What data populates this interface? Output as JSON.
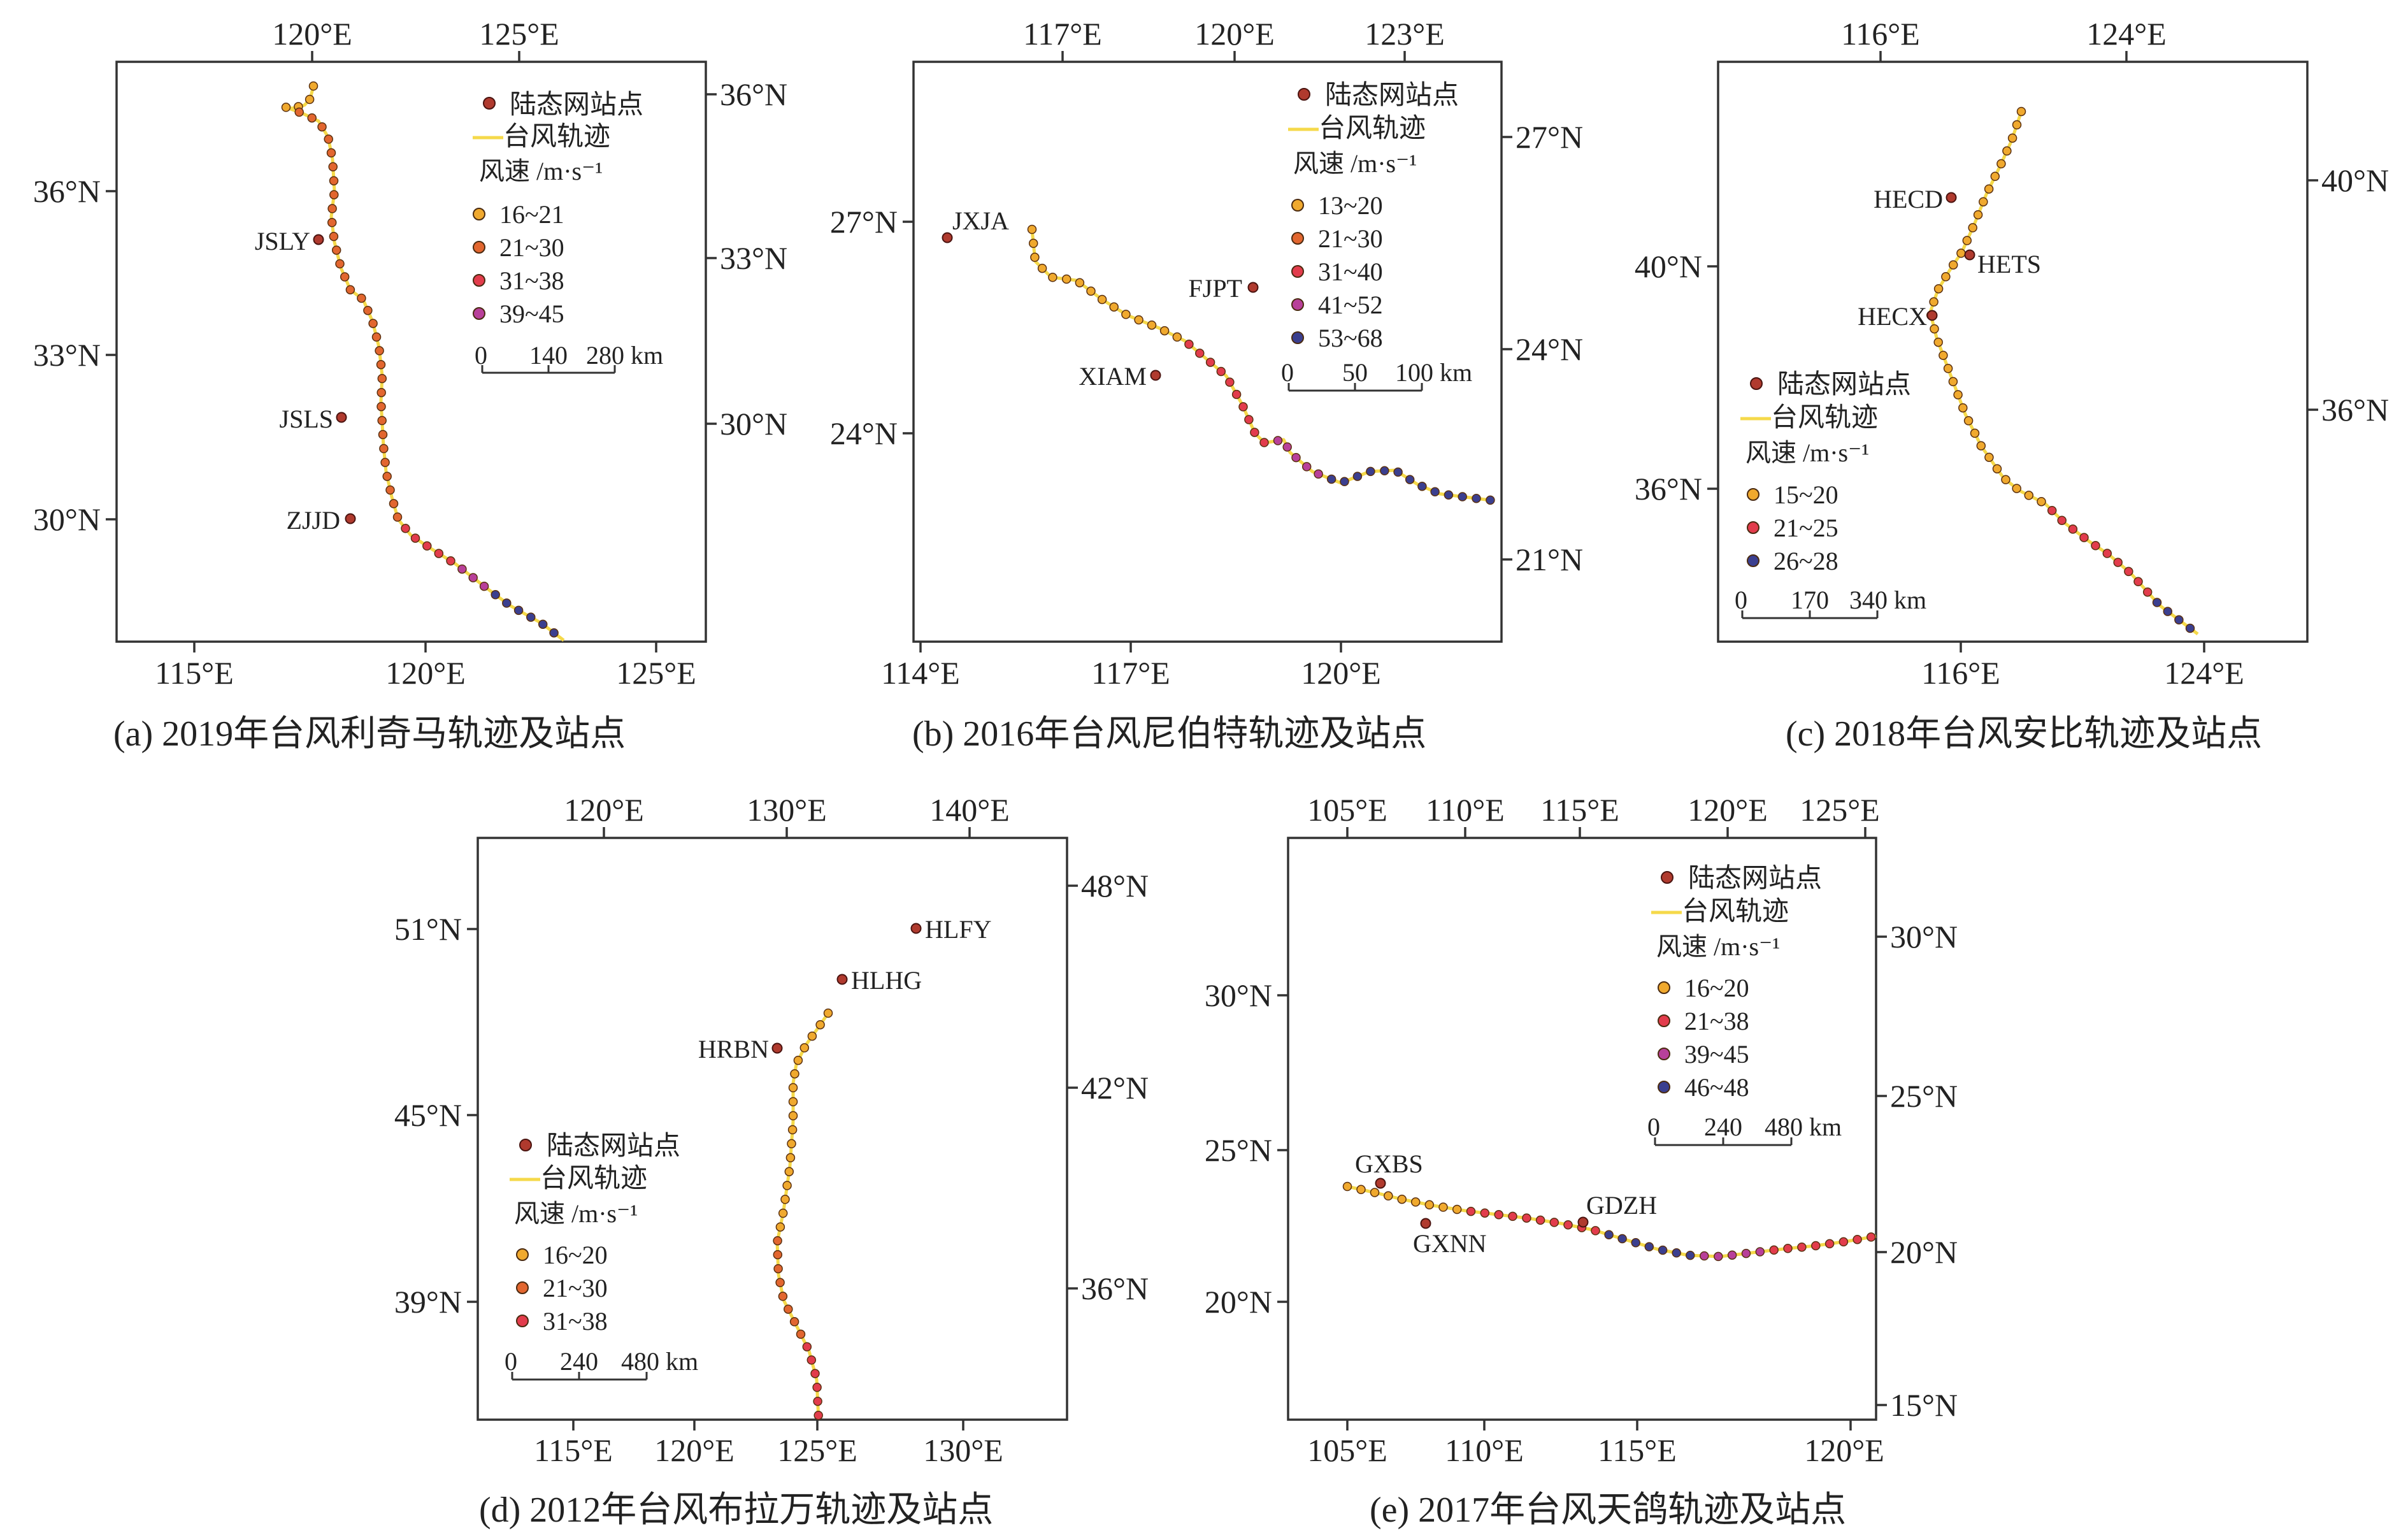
{
  "figure": {
    "legend_common": {
      "station": "陆态网站点",
      "track": "台风轨迹",
      "speed_title": "风速 /m·s⁻¹"
    },
    "colors": {
      "track": "#f5d94a",
      "station": "#b03a2e",
      "c_orange_yellow": "#f0a92e",
      "c_orange": "#e2662f",
      "c_red": "#e23c4c",
      "c_magenta": "#b8409a",
      "c_navy": "#3b3f8f"
    },
    "panels": [
      {
        "id": "a",
        "caption": "(a) 2019年台风利奇马轨迹及站点",
        "top_ticks": [
          "120°E",
          "125°E"
        ],
        "bottom_ticks": [
          "115°E",
          "120°E",
          "125°E"
        ],
        "left_ticks": [
          "36°N",
          "33°N",
          "30°N"
        ],
        "right_ticks": [
          "36°N",
          "33°N",
          "30°N"
        ],
        "stations": [
          {
            "name": "JSLY",
            "lon": 118.15,
            "lat": 35.2
          },
          {
            "name": "JSLS",
            "lon": 118.6,
            "lat": 31.85
          },
          {
            "name": "ZJJD",
            "lon": 118.85,
            "lat": 30.0
          }
        ],
        "legend_ranges": [
          "16~21",
          "21~30",
          "31~38",
          "39~45"
        ],
        "legend_colors": [
          "#f0a92e",
          "#e2662f",
          "#e23c4c",
          "#b8409a"
        ],
        "scale_labels": [
          "0",
          "140",
          "280 km"
        ]
      },
      {
        "id": "b",
        "caption": "(b) 2016年台风尼伯特轨迹及站点",
        "top_ticks": [
          "117°E",
          "120°E",
          "123°E"
        ],
        "bottom_ticks": [
          "114°E",
          "117°E",
          "120°E"
        ],
        "left_ticks": [
          "27°N",
          "24°N"
        ],
        "right_ticks": [
          "27°N",
          "24°N",
          "21°N"
        ],
        "stations": [
          {
            "name": "JXJA",
            "lon": 114.5,
            "lat": 26.85
          },
          {
            "name": "FJPT",
            "lon": 119.0,
            "lat": 25.5
          },
          {
            "name": "XIAM",
            "lon": 117.3,
            "lat": 24.6
          }
        ],
        "legend_ranges": [
          "13~20",
          "21~30",
          "31~40",
          "41~52",
          "53~68"
        ],
        "legend_colors": [
          "#f0a92e",
          "#e2662f",
          "#e23c4c",
          "#b8409a",
          "#3b3f8f"
        ],
        "scale_labels": [
          "0",
          "50",
          "100 km"
        ]
      },
      {
        "id": "c",
        "caption": "(c) 2018年台风安比轨迹及站点",
        "top_ticks": [
          "116°E",
          "124°E"
        ],
        "bottom_ticks": [
          "116°E",
          "124°E"
        ],
        "left_ticks": [
          "40°N",
          "36°N"
        ],
        "right_ticks": [
          "40°N",
          "36°N"
        ],
        "stations": [
          {
            "name": "HECD",
            "lon": 116.6,
            "lat": 41.2
          },
          {
            "name": "HETS",
            "lon": 117.9,
            "lat": 40.0
          },
          {
            "name": "HECX",
            "lon": 116.2,
            "lat": 39.05
          }
        ],
        "legend_ranges": [
          "15~20",
          "21~25",
          "26~28"
        ],
        "legend_colors": [
          "#f0a92e",
          "#e23c4c",
          "#3b3f8f"
        ],
        "scale_labels": [
          "0",
          "170",
          "340 km"
        ]
      },
      {
        "id": "d",
        "caption": "(d) 2012年台风布拉万轨迹及站点",
        "top_ticks": [
          "120°E",
          "130°E",
          "140°E"
        ],
        "bottom_ticks": [
          "115°E",
          "120°E",
          "125°E",
          "130°E"
        ],
        "left_ticks": [
          "51°N",
          "45°N",
          "39°N"
        ],
        "right_ticks": [
          "48°N",
          "42°N",
          "36°N"
        ],
        "stations": [
          {
            "name": "HLFY",
            "lon": 129.8,
            "lat": 51.0
          },
          {
            "name": "HLHG",
            "lon": 126.3,
            "lat": 49.4
          },
          {
            "name": "HRBN",
            "lon": 123.9,
            "lat": 47.6
          }
        ],
        "legend_ranges": [
          "16~20",
          "21~30",
          "31~38"
        ],
        "legend_colors": [
          "#f0a92e",
          "#e2662f",
          "#e23c4c"
        ],
        "scale_labels": [
          "0",
          "240",
          "480 km"
        ]
      },
      {
        "id": "e",
        "caption": "(e) 2017年台风天鸽轨迹及站点",
        "top_ticks": [
          "105°E",
          "110°E",
          "115°E",
          "120°E",
          "125°E"
        ],
        "bottom_ticks": [
          "105°E",
          "110°E",
          "115°E",
          "120°E"
        ],
        "left_ticks": [
          "30°N",
          "25°N",
          "20°N"
        ],
        "right_ticks": [
          "30°N",
          "25°N",
          "20°N",
          "15°N"
        ],
        "stations": [
          {
            "name": "GXBS",
            "lon": 106.8,
            "lat": 23.95
          },
          {
            "name": "GXNN",
            "lon": 108.2,
            "lat": 22.6
          },
          {
            "name": "GDZH",
            "lon": 113.0,
            "lat": 22.6
          }
        ],
        "legend_ranges": [
          "16~20",
          "21~38",
          "39~45",
          "46~48"
        ],
        "legend_colors": [
          "#f0a92e",
          "#e23c4c",
          "#b8409a",
          "#3b3f8f"
        ],
        "scale_labels": [
          "0",
          "240",
          "480 km"
        ]
      }
    ]
  }
}
